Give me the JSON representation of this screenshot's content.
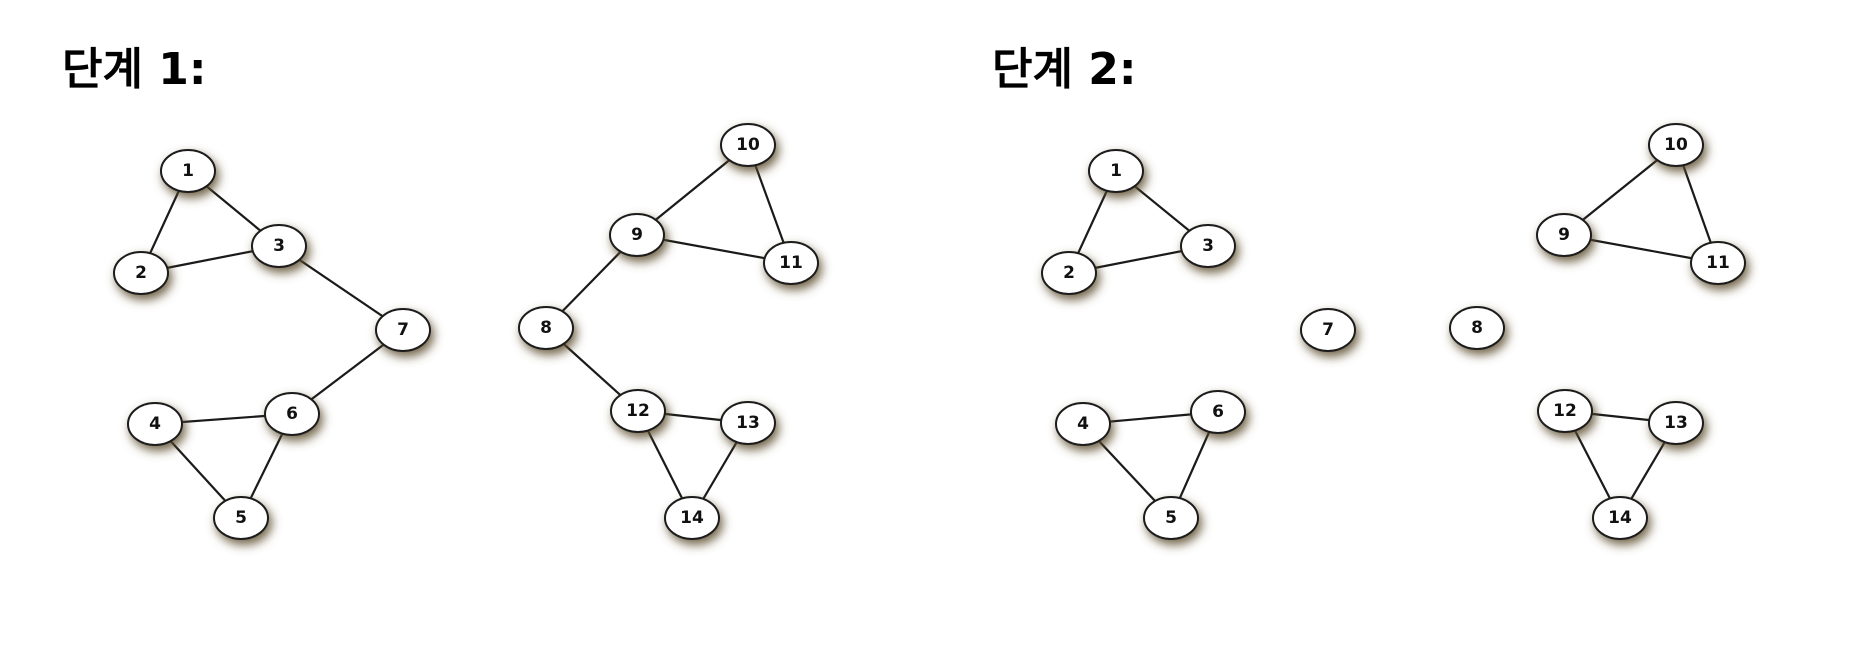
{
  "panels": [
    {
      "title": "단계 1:",
      "nodes": [
        "1",
        "2",
        "3",
        "4",
        "5",
        "6",
        "7",
        "8",
        "9",
        "10",
        "11",
        "12",
        "13",
        "14"
      ],
      "edges": [
        [
          "1",
          "2"
        ],
        [
          "1",
          "3"
        ],
        [
          "2",
          "3"
        ],
        [
          "3",
          "7"
        ],
        [
          "7",
          "6"
        ],
        [
          "4",
          "6"
        ],
        [
          "4",
          "5"
        ],
        [
          "5",
          "6"
        ],
        [
          "8",
          "9"
        ],
        [
          "9",
          "10"
        ],
        [
          "9",
          "11"
        ],
        [
          "10",
          "11"
        ],
        [
          "8",
          "12"
        ],
        [
          "12",
          "13"
        ],
        [
          "12",
          "14"
        ],
        [
          "13",
          "14"
        ]
      ]
    },
    {
      "title": "단계 2:",
      "nodes": [
        "1",
        "2",
        "3",
        "4",
        "5",
        "6",
        "7",
        "8",
        "9",
        "10",
        "11",
        "12",
        "13",
        "14"
      ],
      "edges": [
        [
          "1",
          "2"
        ],
        [
          "1",
          "3"
        ],
        [
          "2",
          "3"
        ],
        [
          "4",
          "6"
        ],
        [
          "4",
          "5"
        ],
        [
          "5",
          "6"
        ],
        [
          "9",
          "10"
        ],
        [
          "9",
          "11"
        ],
        [
          "10",
          "11"
        ],
        [
          "12",
          "13"
        ],
        [
          "12",
          "14"
        ],
        [
          "13",
          "14"
        ]
      ]
    }
  ],
  "colors": {
    "node_fill": "#ffffff",
    "node_stroke": "#1a1a1a",
    "edge": "#1a1a1a",
    "shadow": "#5a4a2a"
  }
}
